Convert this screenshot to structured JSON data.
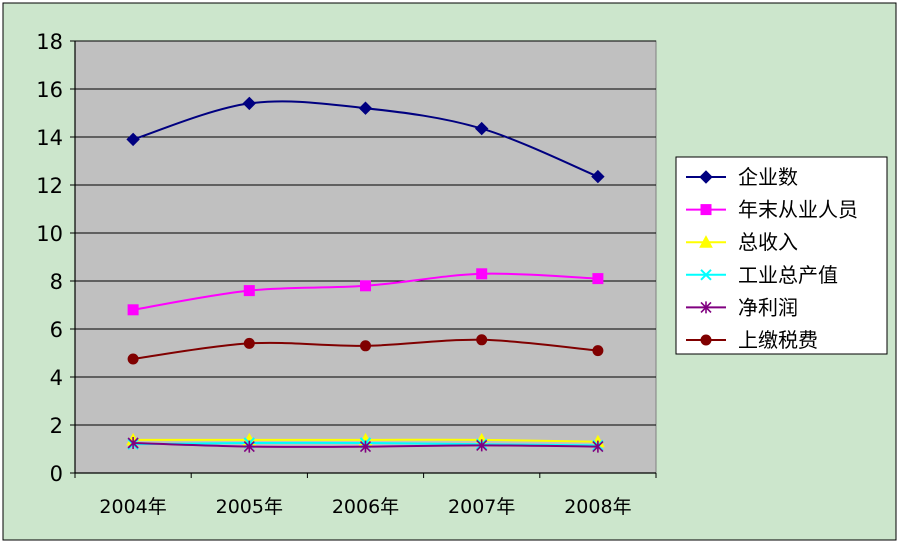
{
  "colors": {
    "page_background": "#cce6cc",
    "plot_background": "#c0c0c0",
    "gridline": "#000000"
  },
  "chart_data": {
    "type": "line",
    "title": "",
    "xlabel": "",
    "ylabel": "",
    "categories": [
      "2004年",
      "2005年",
      "2006年",
      "2007年",
      "2008年"
    ],
    "ylim": [
      0,
      18
    ],
    "yticks": [
      0,
      2,
      4,
      6,
      8,
      10,
      12,
      14,
      16,
      18
    ],
    "grid": "horizontal",
    "smooth": true,
    "legend_position": "right",
    "series": [
      {
        "name": "企业数",
        "color": "#000080",
        "marker": "diamond",
        "values": [
          13.9,
          15.4,
          15.2,
          14.35,
          12.35
        ]
      },
      {
        "name": "年末从业人员",
        "color": "#ff00ff",
        "marker": "square",
        "values": [
          6.8,
          7.6,
          7.8,
          8.3,
          8.1
        ]
      },
      {
        "name": "总收入",
        "color": "#ffff00",
        "marker": "triangle",
        "values": [
          1.38,
          1.38,
          1.38,
          1.38,
          1.3
        ]
      },
      {
        "name": "工业总产值",
        "color": "#00ffff",
        "marker": "x",
        "values": [
          1.2,
          1.25,
          1.25,
          1.2,
          1.15
        ]
      },
      {
        "name": "净利润",
        "color": "#800080",
        "marker": "asterisk",
        "values": [
          1.25,
          1.1,
          1.1,
          1.15,
          1.1
        ]
      },
      {
        "name": "上缴税费",
        "color": "#800000",
        "marker": "circle",
        "values": [
          4.75,
          5.4,
          5.3,
          5.55,
          5.1
        ]
      }
    ]
  }
}
